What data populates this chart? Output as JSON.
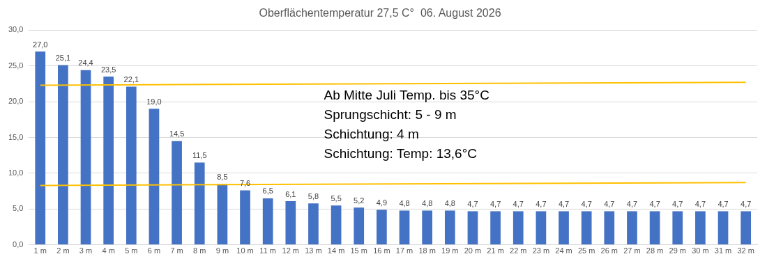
{
  "chart_data": {
    "type": "bar",
    "title": "Oberflächentemperatur 27,5 C°  06. August 2026",
    "categories": [
      "1 m",
      "2 m",
      "3 m",
      "4 m",
      "5 m",
      "6 m",
      "7 m",
      "8 m",
      "9 m",
      "10 m",
      "11 m",
      "12 m",
      "13 m",
      "14 m",
      "15 m",
      "16 m",
      "17 m",
      "18 m",
      "19 m",
      "20 m",
      "21 m",
      "22 m",
      "23 m",
      "24 m",
      "25 m",
      "26 m",
      "27 m",
      "28 m",
      "29 m",
      "30 m",
      "31 m",
      "32 m"
    ],
    "series": [
      {
        "color": "#4472c4",
        "values": [
          27.0,
          25.1,
          24.4,
          23.5,
          22.1,
          19.0,
          14.5,
          11.5,
          8.5,
          7.6,
          6.5,
          6.1,
          5.8,
          5.5,
          5.2,
          4.9,
          4.8,
          4.8,
          4.8,
          4.7,
          4.7,
          4.7,
          4.7,
          4.7,
          4.7,
          4.7,
          4.7,
          4.7,
          4.7,
          4.7,
          4.7,
          4.7
        ],
        "value_labels": [
          "27,0",
          "25,1",
          "24,4",
          "23,5",
          "22,1",
          "19,0",
          "14,5",
          "11,5",
          "8,5",
          "7,6",
          "6,5",
          "6,1",
          "5,8",
          "5,5",
          "5,2",
          "4,9",
          "4,8",
          "4,8",
          "4,8",
          "4,7",
          "4,7",
          "4,7",
          "4,7",
          "4,7",
          "4,7",
          "4,7",
          "4,7",
          "4,7",
          "4,7",
          "4,7",
          "4,7",
          "4,7"
        ]
      },
      {
        "type": "line",
        "color": "#ffc000",
        "x": [
          "1 m",
          "32 m"
        ],
        "values": [
          22.3,
          22.7
        ]
      },
      {
        "type": "line",
        "color": "#ffc000",
        "x": [
          "1 m",
          "32 m"
        ],
        "values": [
          8.3,
          8.7
        ]
      }
    ],
    "ylim": [
      0,
      30
    ],
    "yticks": [
      {
        "value": 0,
        "label": "0,0"
      },
      {
        "value": 5,
        "label": "5,0"
      },
      {
        "value": 10,
        "label": "10,0"
      },
      {
        "value": 15,
        "label": "15,0"
      },
      {
        "value": 20,
        "label": "20,0"
      },
      {
        "value": 25,
        "label": "25,0"
      },
      {
        "value": 30,
        "label": "30,0"
      }
    ],
    "grid": "y",
    "legend": false,
    "marker": "none",
    "annotations": [
      "Ab Mitte Juli Temp. bis 35°C",
      "Sprungschicht: 5 - 9 m",
      "Schichtung: 4 m",
      "Schichtung: Temp: 13,6°C"
    ]
  }
}
